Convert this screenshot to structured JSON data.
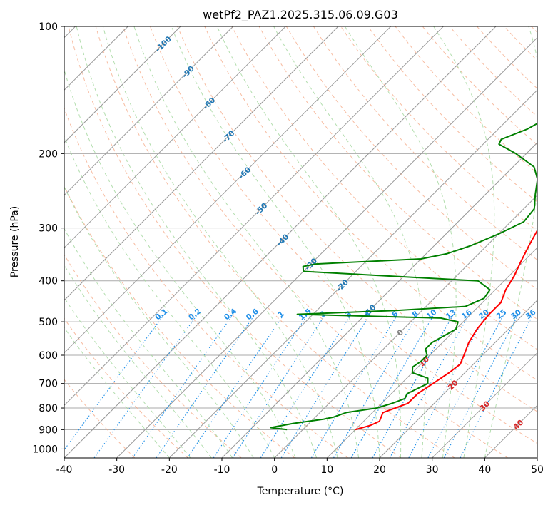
{
  "chart_data": {
    "type": "line",
    "title": "wetPf2_PAZ1.2025.315.06.09.G03",
    "xlabel": "Temperature (°C)",
    "ylabel": "Pressure (hPa)",
    "xlim": [
      -40,
      50
    ],
    "ylim": [
      1050,
      100
    ],
    "xticks": [
      "-40",
      "-30",
      "-20",
      "-10",
      "0",
      "10",
      "20",
      "30",
      "40",
      "50"
    ],
    "yticks": [
      {
        "p": 100,
        "label": "100"
      },
      {
        "p": 200,
        "label": "200"
      },
      {
        "p": 300,
        "label": "300"
      },
      {
        "p": 400,
        "label": "400"
      },
      {
        "p": 500,
        "label": "500"
      },
      {
        "p": 600,
        "label": "600"
      },
      {
        "p": 700,
        "label": "700"
      },
      {
        "p": 800,
        "label": "800"
      },
      {
        "p": 900,
        "label": "900"
      },
      {
        "p": 1000,
        "label": "1000"
      }
    ],
    "colors": {
      "temperature": "#ff0000",
      "dewpoint": "#008000",
      "isotherm": "#999999",
      "isobar": "#aaaaaa",
      "dry_adiabat": "#f4a582",
      "moist_adiabat": "#a6d8a0",
      "mixing_ratio": "#1f8fe8",
      "isotherm_label": "#1f77b4",
      "lifted_label": "#d62728",
      "zero_label": "#808080"
    },
    "series": [
      {
        "name": "Temperature",
        "points": [
          [
            10.0,
            900
          ],
          [
            12.0,
            880
          ],
          [
            13.0,
            860
          ],
          [
            12.5,
            840
          ],
          [
            12.0,
            820
          ],
          [
            13.5,
            800
          ],
          [
            15.0,
            780
          ],
          [
            15.0,
            740
          ],
          [
            16.0,
            700
          ],
          [
            17.0,
            660
          ],
          [
            17.5,
            630
          ],
          [
            16.5,
            600
          ],
          [
            15.0,
            560
          ],
          [
            14.0,
            520
          ],
          [
            13.5,
            480
          ],
          [
            13.5,
            450
          ],
          [
            12.0,
            420
          ],
          [
            11.0,
            390
          ],
          [
            9.5,
            360
          ],
          [
            8.0,
            330
          ],
          [
            6.5,
            300
          ],
          [
            5.5,
            270
          ],
          [
            4.0,
            240
          ],
          [
            2.5,
            220
          ],
          [
            3.0,
            210
          ],
          [
            5.0,
            200
          ],
          [
            7.0,
            190
          ],
          [
            8.0,
            180
          ],
          [
            7.0,
            170
          ],
          [
            6.5,
            160
          ],
          [
            7.5,
            150
          ],
          [
            9.5,
            140
          ],
          [
            12.0,
            130
          ],
          [
            14.5,
            120
          ],
          [
            16.5,
            110
          ],
          [
            17.5,
            105
          ],
          [
            17.5,
            100
          ]
        ]
      },
      {
        "name": "Dewpoint",
        "points": [
          [
            -3.0,
            900
          ],
          [
            -6.5,
            890
          ],
          [
            -3.0,
            870
          ],
          [
            2.0,
            850
          ],
          [
            3.5,
            840
          ],
          [
            5.0,
            820
          ],
          [
            10.0,
            800
          ],
          [
            12.0,
            780
          ],
          [
            13.5,
            760
          ],
          [
            13.0,
            740
          ],
          [
            14.0,
            720
          ],
          [
            15.0,
            700
          ],
          [
            14.0,
            680
          ],
          [
            10.0,
            660
          ],
          [
            9.0,
            640
          ],
          [
            9.5,
            620
          ],
          [
            9.5,
            600
          ],
          [
            8.0,
            580
          ],
          [
            8.0,
            560
          ],
          [
            9.0,
            540
          ],
          [
            10.0,
            520
          ],
          [
            9.0,
            500
          ],
          [
            5.0,
            490
          ],
          [
            -23.0,
            480
          ],
          [
            -5.0,
            470
          ],
          [
            7.5,
            460
          ],
          [
            9.5,
            440
          ],
          [
            9.0,
            420
          ],
          [
            5.0,
            400
          ],
          [
            -30.0,
            380
          ],
          [
            -31.0,
            370
          ],
          [
            -29.0,
            365
          ],
          [
            -10.0,
            355
          ],
          [
            -6.0,
            345
          ],
          [
            -3.0,
            330
          ],
          [
            0.0,
            310
          ],
          [
            2.5,
            290
          ],
          [
            2.0,
            270
          ],
          [
            -0.5,
            250
          ],
          [
            -3.0,
            230
          ],
          [
            -6.0,
            215
          ],
          [
            -12.0,
            200
          ],
          [
            -17.0,
            190
          ],
          [
            -17.5,
            185
          ],
          [
            -14.5,
            175
          ],
          [
            -12.0,
            160
          ],
          [
            -10.5,
            145
          ],
          [
            -8.0,
            130
          ],
          [
            -5.5,
            115
          ],
          [
            -3.0,
            105
          ],
          [
            -1.0,
            100
          ]
        ]
      }
    ],
    "isotherm_labels": [
      "-100",
      "-90",
      "-80",
      "-70",
      "-60",
      "-50",
      "-40",
      "-30",
      "-20",
      "-10",
      "0",
      "10",
      "20",
      "30",
      "40"
    ],
    "mixing_ratio_labels": [
      "0.1",
      "0.2",
      "0.4",
      "0.6",
      "1",
      "1.5",
      "2",
      "3",
      "4",
      "6",
      "8",
      "10",
      "13",
      "16",
      "20",
      "25",
      "30",
      "36"
    ]
  }
}
